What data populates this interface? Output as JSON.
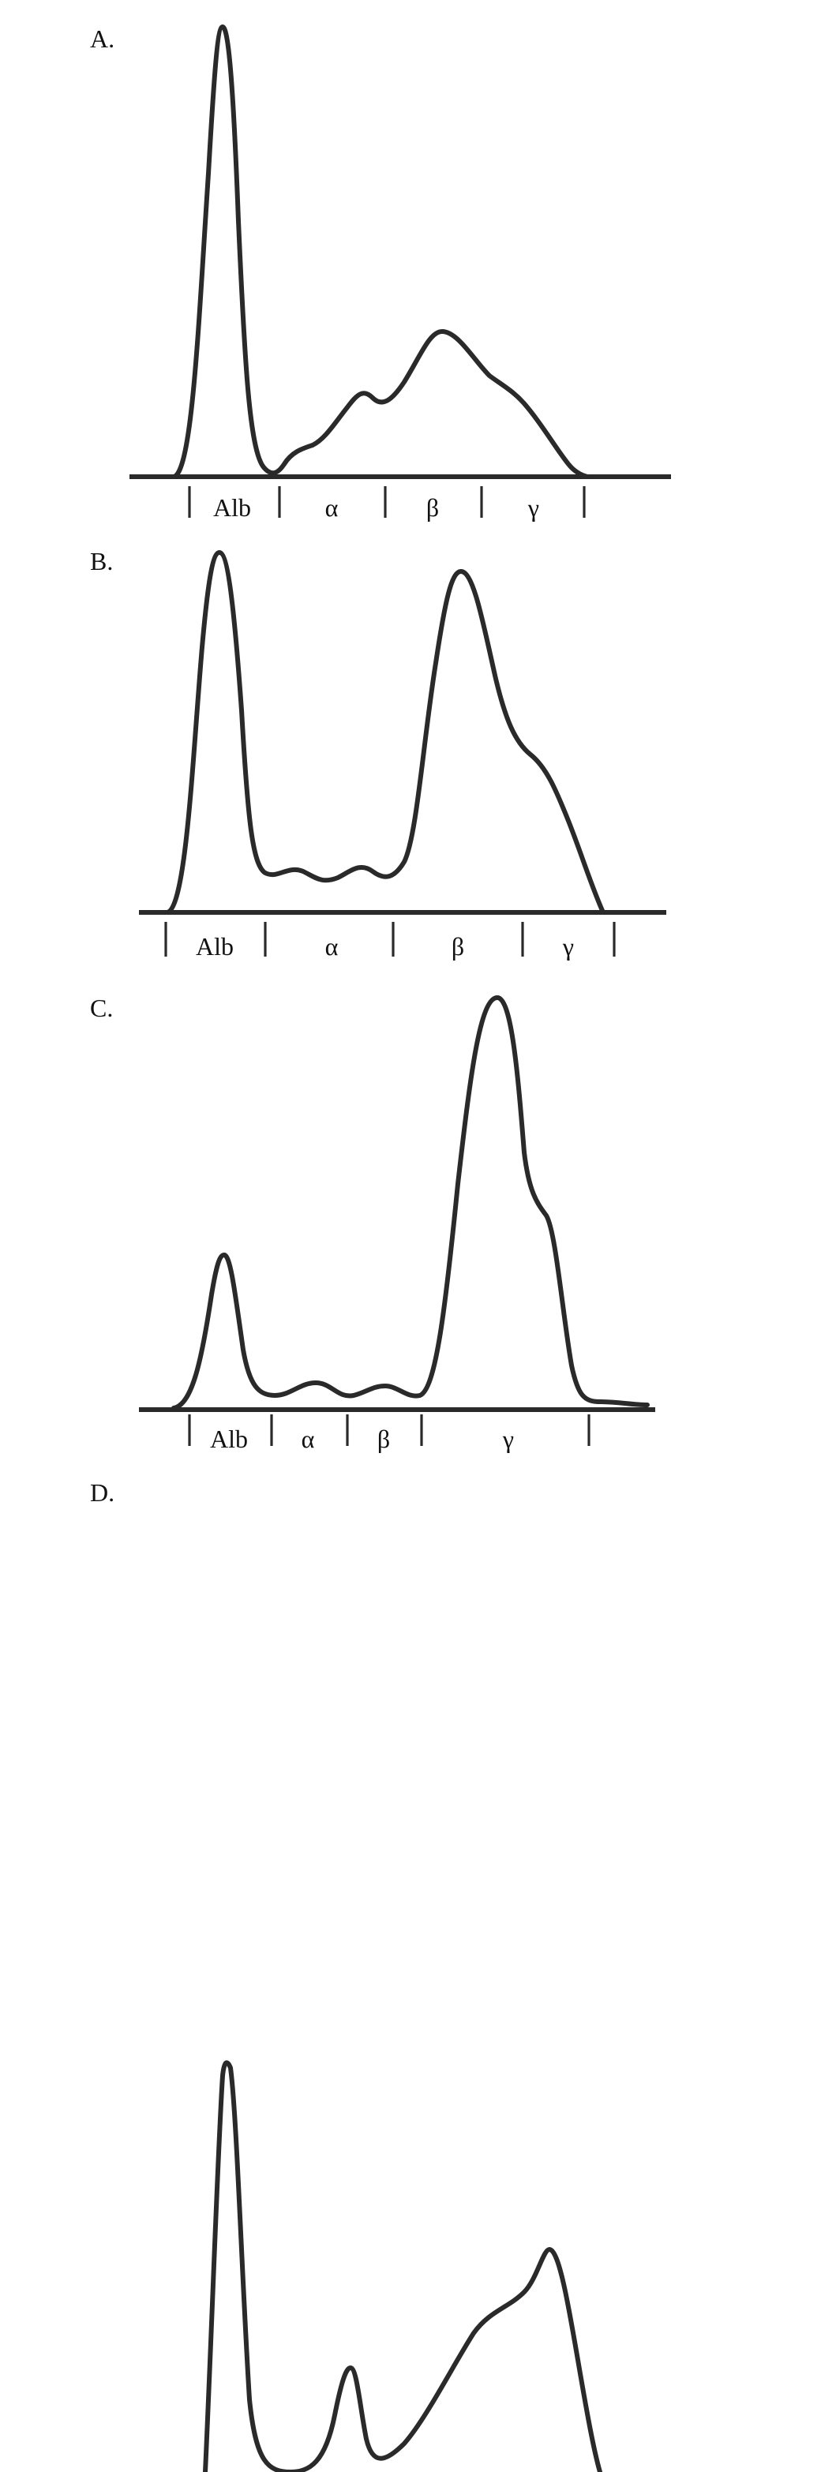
{
  "panels": [
    {
      "label": "A.",
      "segments": [
        "Alb",
        "α",
        "β",
        "γ"
      ]
    },
    {
      "label": "B.",
      "segments": [
        "Alb",
        "α",
        "β",
        "γ"
      ]
    },
    {
      "label": "C.",
      "segments": [
        "Alb",
        "α",
        "β",
        "γ"
      ]
    },
    {
      "label": "D."
    }
  ]
}
